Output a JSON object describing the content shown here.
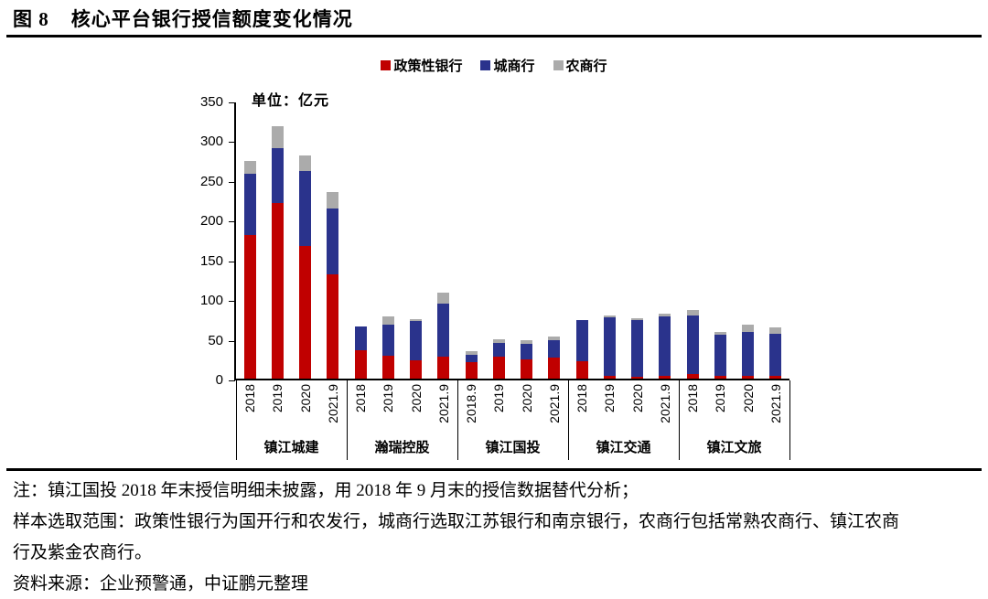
{
  "figure": {
    "number": "图 8",
    "title": "核心平台银行授信额度变化情况"
  },
  "chart_data": {
    "type": "bar",
    "stacked": true,
    "unit_annotation": "单位：亿元",
    "ylim": [
      0,
      350
    ],
    "yticks": [
      0,
      50,
      100,
      150,
      200,
      250,
      300,
      350
    ],
    "gridlines": false,
    "legend_position": "top-center",
    "series": [
      {
        "key": "policy-bank",
        "name": "政策性银行",
        "color": "#c00000"
      },
      {
        "key": "city-bank",
        "name": "城商行",
        "color": "#2a338c"
      },
      {
        "key": "rural-bank",
        "name": "农商行",
        "color": "#ababab"
      }
    ],
    "groups": [
      {
        "name": "镇江城建",
        "bars": [
          {
            "label": "2018",
            "values": [
              181,
              77,
              16
            ]
          },
          {
            "label": "2019",
            "values": [
              221,
              69,
              28
            ]
          },
          {
            "label": "2020",
            "values": [
              167,
              94,
              20
            ]
          },
          {
            "label": "2021.9",
            "values": [
              131,
              83,
              21
            ]
          }
        ]
      },
      {
        "name": "瀚瑞控股",
        "bars": [
          {
            "label": "2018",
            "values": [
              36,
              30,
              0
            ]
          },
          {
            "label": "2019",
            "values": [
              29,
              39,
              10
            ]
          },
          {
            "label": "2020",
            "values": [
              23,
              49,
              3
            ]
          },
          {
            "label": "2021.9",
            "values": [
              28,
              67,
              13
            ]
          }
        ]
      },
      {
        "name": "镇江国投",
        "bars": [
          {
            "label": "2018.9",
            "values": [
              21,
              9,
              5
            ]
          },
          {
            "label": "2019",
            "values": [
              28,
              17,
              4
            ]
          },
          {
            "label": "2020",
            "values": [
              24,
              20,
              4
            ]
          },
          {
            "label": "2021.9",
            "values": [
              27,
              21,
              5
            ]
          }
        ]
      },
      {
        "name": "镇江交通",
        "bars": [
          {
            "label": "2018",
            "values": [
              22,
              52,
              0
            ]
          },
          {
            "label": "2019",
            "values": [
              3,
              74,
              3
            ]
          },
          {
            "label": "2020",
            "values": [
              2,
              72,
              2
            ]
          },
          {
            "label": "2021.9",
            "values": [
              3,
              75,
              4
            ]
          }
        ]
      },
      {
        "name": "镇江文旅",
        "bars": [
          {
            "label": "2018",
            "values": [
              6,
              73,
              7
            ]
          },
          {
            "label": "2019",
            "values": [
              3,
              52,
              4
            ]
          },
          {
            "label": "2020",
            "values": [
              4,
              55,
              9
            ]
          },
          {
            "label": "2021.9",
            "values": [
              4,
              52,
              8
            ]
          }
        ]
      }
    ]
  },
  "notes": {
    "line1": "注：镇江国投 2018 年末授信明细未披露，用 2018 年 9 月末的授信数据替代分析；",
    "line2": "样本选取范围：政策性银行为国开行和农发行，城商行选取江苏银行和南京银行，农商行包括常熟农商行、镇江农商",
    "line3": "行及紫金农商行。",
    "source": "资料来源：企业预警通，中证鹏元整理"
  }
}
